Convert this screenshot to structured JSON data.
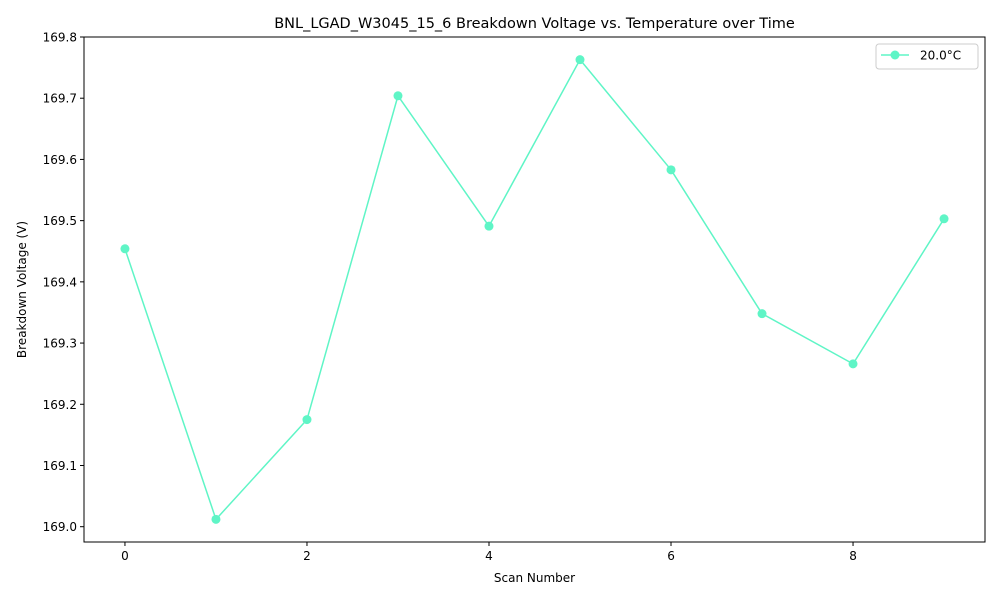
{
  "chart_data": {
    "type": "line",
    "title": "BNL_LGAD_W3045_15_6 Breakdown Voltage vs. Temperature over Time",
    "xlabel": "Scan Number",
    "ylabel": "Breakdown Voltage (V)",
    "xlim": [
      -0.45,
      9.45
    ],
    "ylim": [
      168.975,
      169.8
    ],
    "x_ticks": [
      0,
      2,
      4,
      6,
      8
    ],
    "x_tick_labels": [
      "0",
      "2",
      "4",
      "6",
      "8"
    ],
    "y_ticks": [
      169.0,
      169.1,
      169.2,
      169.3,
      169.4,
      169.5,
      169.6,
      169.7,
      169.8
    ],
    "y_tick_labels": [
      "169.0",
      "169.1",
      "169.2",
      "169.3",
      "169.4",
      "169.5",
      "169.6",
      "169.7",
      "169.8"
    ],
    "grid": false,
    "legend_position": "top-right",
    "series": [
      {
        "name": "20.0°C",
        "legend_label": "20.0$^\\circ$C",
        "color": "#5ff5c6",
        "marker": "circle",
        "x": [
          0,
          1,
          2,
          3,
          4,
          5,
          6,
          7,
          8,
          9
        ],
        "values": [
          169.454,
          169.012,
          169.175,
          169.704,
          169.491,
          169.763,
          169.583,
          169.348,
          169.266,
          169.503
        ]
      }
    ]
  }
}
